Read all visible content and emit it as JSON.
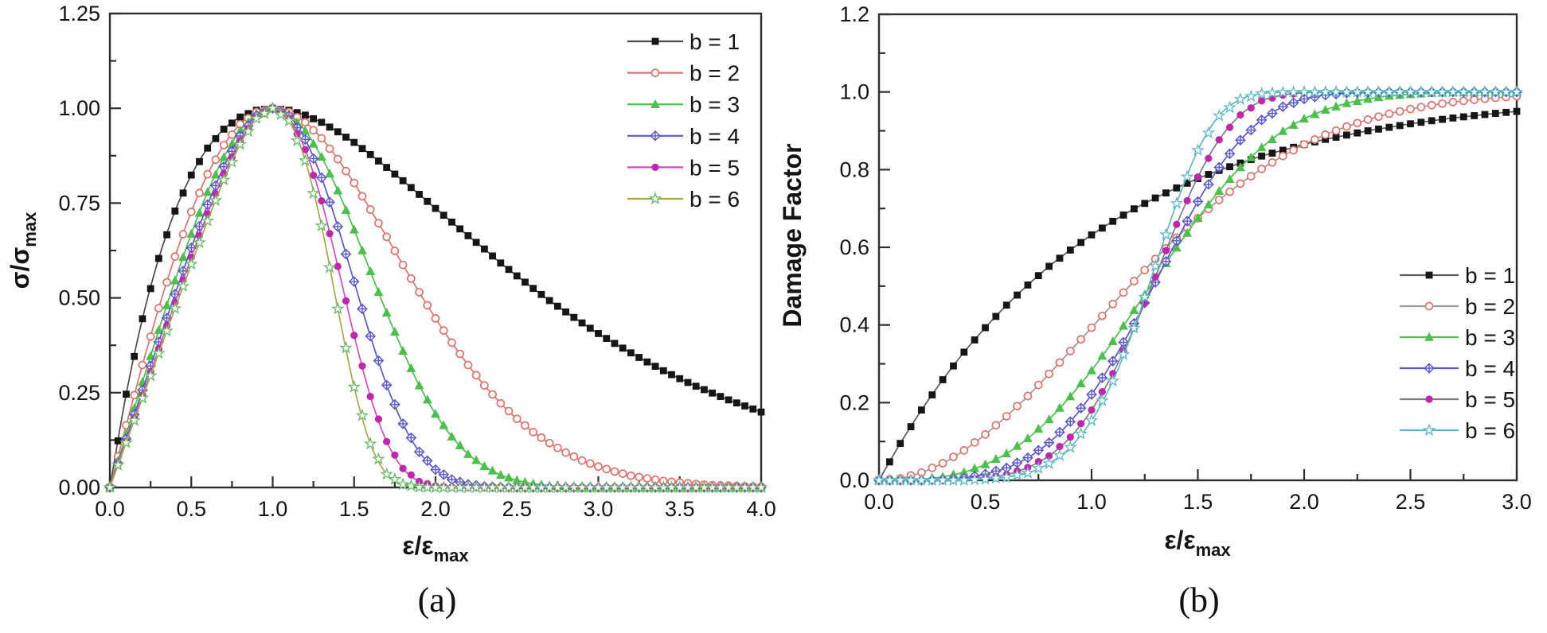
{
  "figure": {
    "background": "#ffffff",
    "frame_color": "#2e2e2e",
    "text_color": "#141414"
  },
  "chart_data": [
    {
      "id": "a",
      "type": "line",
      "caption": "(a)",
      "xlabel": {
        "text": "ε/ε",
        "sub": "max"
      },
      "ylabel": {
        "text": "σ/σ",
        "sub": "max"
      },
      "x_axis": {
        "min": 0,
        "max": 4,
        "major": 0.5,
        "minor": 0.25,
        "tick_labels": [
          "0.0",
          "0.5",
          "1.0",
          "1.5",
          "2.0",
          "2.5",
          "3.0",
          "3.5",
          "4.0"
        ]
      },
      "y_axis": {
        "min": 0,
        "max": 1.25,
        "major": 0.25,
        "minor": 0.125,
        "tick_labels": [
          "0.00",
          "0.25",
          "0.50",
          "0.75",
          "1.00",
          "1.25"
        ]
      },
      "grid": false,
      "legend_pos": "top-right",
      "series": [
        {
          "label": "b = 1",
          "marker": "square",
          "marker_color": "#161616",
          "line_color": "#4a4a4a",
          "x_start": 0,
          "x_step": 0.1,
          "y": [
            0,
            0.246,
            0.445,
            0.604,
            0.729,
            0.824,
            0.895,
            0.945,
            0.977,
            0.995,
            1,
            0.995,
            0.982,
            0.963,
            0.938,
            0.91,
            0.878,
            0.844,
            0.809,
            0.773,
            0.736,
            0.7,
            0.664,
            0.629,
            0.592,
            0.558,
            0.525,
            0.493,
            0.463,
            0.434,
            0.406,
            0.38,
            0.355,
            0.331,
            0.308,
            0.287,
            0.267,
            0.249,
            0.231,
            0.215,
            0.199
          ]
        },
        {
          "label": "b = 2",
          "marker": "circle-open",
          "marker_color": "#e0716b",
          "line_color": "#e0716b",
          "x_start": 0,
          "x_step": 0.1,
          "y": [
            0,
            0.164,
            0.323,
            0.473,
            0.609,
            0.727,
            0.826,
            0.903,
            0.958,
            0.99,
            1,
            0.99,
            0.963,
            0.921,
            0.866,
            0.803,
            0.733,
            0.661,
            0.587,
            0.515,
            0.446,
            0.382,
            0.323,
            0.269,
            0.222,
            0.181,
            0.146,
            0.117,
            0.092,
            0.071,
            0.055,
            0.042,
            0.031,
            0.024,
            0.017,
            0.013,
            0.009,
            0.006,
            0.005,
            0.003,
            0.002
          ]
        },
        {
          "label": "b = 3",
          "marker": "triangle",
          "marker_color": "#4cc04c",
          "line_color": "#4cc04c",
          "x_start": 0,
          "x_step": 0.1,
          "y": [
            0,
            0.14,
            0.278,
            0.415,
            0.546,
            0.669,
            0.779,
            0.871,
            0.941,
            0.985,
            1,
            0.985,
            0.941,
            0.872,
            0.783,
            0.68,
            0.57,
            0.461,
            0.36,
            0.269,
            0.194,
            0.134,
            0.088,
            0.056,
            0.033,
            0.019,
            0.01,
            0.005,
            0.003,
            0.001,
            0.001,
            0,
            0,
            0,
            0,
            0,
            0,
            0,
            0,
            0,
            0
          ]
        },
        {
          "label": "b = 4",
          "marker": "diamond-cross",
          "marker_color": "#5a57c8",
          "line_color": "#5a57c8",
          "x_start": 0,
          "x_step": 0.1,
          "y": [
            0,
            0.128,
            0.257,
            0.384,
            0.51,
            0.632,
            0.746,
            0.846,
            0.927,
            0.981,
            1,
            0.98,
            0.918,
            0.817,
            0.688,
            0.543,
            0.399,
            0.27,
            0.168,
            0.094,
            0.047,
            0.021,
            0.008,
            0.003,
            0.001,
            0,
            0,
            0,
            0,
            0,
            0,
            0,
            0,
            0,
            0,
            0,
            0,
            0,
            0,
            0,
            0
          ]
        },
        {
          "label": "b = 5",
          "marker": "circle",
          "marker_color": "#bf27ad",
          "line_color": "#d24cbe",
          "x_start": 0,
          "x_step": 0.1,
          "y": [
            0,
            0.122,
            0.244,
            0.366,
            0.488,
            0.607,
            0.722,
            0.827,
            0.915,
            0.977,
            1,
            0.974,
            0.891,
            0.756,
            0.583,
            0.401,
            0.24,
            0.121,
            0.05,
            0.016,
            0.004,
            0.001,
            0,
            0,
            0,
            0,
            0,
            0,
            0,
            0,
            0,
            0,
            0,
            0,
            0,
            0,
            0,
            0,
            0,
            0,
            0
          ]
        },
        {
          "label": "b = 6",
          "marker": "star-open",
          "marker_color": "#66b966",
          "line_color": "#a8a84a",
          "x_start": 0,
          "x_step": 0.1,
          "y": [
            0,
            0.118,
            0.236,
            0.354,
            0.472,
            0.589,
            0.703,
            0.811,
            0.905,
            0.973,
            1,
            0.967,
            0.862,
            0.69,
            0.471,
            0.265,
            0.115,
            0.035,
            0.008,
            0.001,
            0,
            0,
            0,
            0,
            0,
            0,
            0,
            0,
            0,
            0,
            0,
            0,
            0,
            0,
            0,
            0,
            0,
            0,
            0,
            0,
            0
          ]
        }
      ]
    },
    {
      "id": "b",
      "type": "line",
      "caption": "(b)",
      "xlabel": {
        "text": "ε/ε",
        "sub": "max"
      },
      "ylabel": {
        "text": "Damage Factor",
        "sub": ""
      },
      "x_axis": {
        "min": 0,
        "max": 3,
        "major": 0.5,
        "minor": 0.25,
        "tick_labels": [
          "0.0",
          "0.5",
          "1.0",
          "1.5",
          "2.0",
          "2.5",
          "3.0"
        ]
      },
      "y_axis": {
        "min": 0,
        "max": 1.2,
        "major": 0.2,
        "minor": 0.1,
        "tick_labels": [
          "0.0",
          "0.2",
          "0.4",
          "0.6",
          "0.8",
          "1.0",
          "1.2"
        ]
      },
      "grid": false,
      "legend_pos": "mid-right",
      "series": [
        {
          "label": "b = 1",
          "marker": "square",
          "marker_color": "#161616",
          "line_color": "#5a5a5a",
          "x_start": 0,
          "x_step": 0.1,
          "y": [
            0,
            0.095,
            0.181,
            0.259,
            0.33,
            0.393,
            0.451,
            0.503,
            0.551,
            0.593,
            0.632,
            0.667,
            0.699,
            0.727,
            0.753,
            0.777,
            0.798,
            0.817,
            0.835,
            0.85,
            0.865,
            0.878,
            0.889,
            0.9,
            0.909,
            0.918,
            0.926,
            0.933,
            0.939,
            0.945,
            0.95
          ]
        },
        {
          "label": "b = 2",
          "marker": "circle-open",
          "marker_color": "#e0716b",
          "line_color": "#9a9a9a",
          "x_start": 0,
          "x_step": 0.1,
          "y": [
            0,
            0.005,
            0.02,
            0.044,
            0.077,
            0.118,
            0.165,
            0.217,
            0.274,
            0.333,
            0.393,
            0.454,
            0.513,
            0.57,
            0.625,
            0.675,
            0.722,
            0.764,
            0.802,
            0.835,
            0.865,
            0.89,
            0.911,
            0.929,
            0.944,
            0.956,
            0.966,
            0.974,
            0.98,
            0.985,
            0.989
          ]
        },
        {
          "label": "b = 3",
          "marker": "triangle",
          "marker_color": "#4cc04c",
          "line_color": "#4cc04c",
          "x_start": 0,
          "x_step": 0.1,
          "y": [
            0,
            0,
            0.003,
            0.009,
            0.021,
            0.041,
            0.069,
            0.108,
            0.157,
            0.216,
            0.283,
            0.358,
            0.438,
            0.519,
            0.599,
            0.675,
            0.745,
            0.806,
            0.857,
            0.899,
            0.931,
            0.954,
            0.971,
            0.982,
            0.99,
            0.994,
            0.997,
            0.999,
            0.999,
            1,
            1
          ]
        },
        {
          "label": "b = 4",
          "marker": "diamond-cross",
          "marker_color": "#5a57c8",
          "line_color": "#5a57c8",
          "x_start": 0,
          "x_step": 0.1,
          "y": [
            0,
            0,
            0,
            0.002,
            0.006,
            0.016,
            0.032,
            0.058,
            0.097,
            0.151,
            0.221,
            0.307,
            0.404,
            0.51,
            0.617,
            0.718,
            0.806,
            0.876,
            0.928,
            0.962,
            0.982,
            0.992,
            0.997,
            0.999,
            1,
            1,
            1,
            1,
            1,
            1,
            1
          ]
        },
        {
          "label": "b = 5",
          "marker": "circle",
          "marker_color": "#bf27ad",
          "line_color": "#7d7d7d",
          "x_start": 0,
          "x_step": 0.1,
          "y": [
            0,
            0,
            0,
            0,
            0.002,
            0.006,
            0.015,
            0.033,
            0.063,
            0.111,
            0.181,
            0.275,
            0.392,
            0.524,
            0.659,
            0.781,
            0.877,
            0.941,
            0.977,
            0.992,
            0.998,
            0.999,
            1,
            1,
            1,
            1,
            1,
            1,
            1,
            1,
            1
          ]
        },
        {
          "label": "b = 6",
          "marker": "star-open",
          "marker_color": "#5fb9c1",
          "line_color": "#5fb9c1",
          "x_start": 0,
          "x_step": 0.1,
          "y": [
            0,
            0,
            0,
            0,
            0,
            0.003,
            0.008,
            0.019,
            0.043,
            0.085,
            0.154,
            0.256,
            0.392,
            0.552,
            0.713,
            0.85,
            0.939,
            0.981,
            0.996,
            0.999,
            1,
            1,
            1,
            1,
            1,
            1,
            1,
            1,
            1,
            1,
            1
          ]
        }
      ]
    }
  ]
}
